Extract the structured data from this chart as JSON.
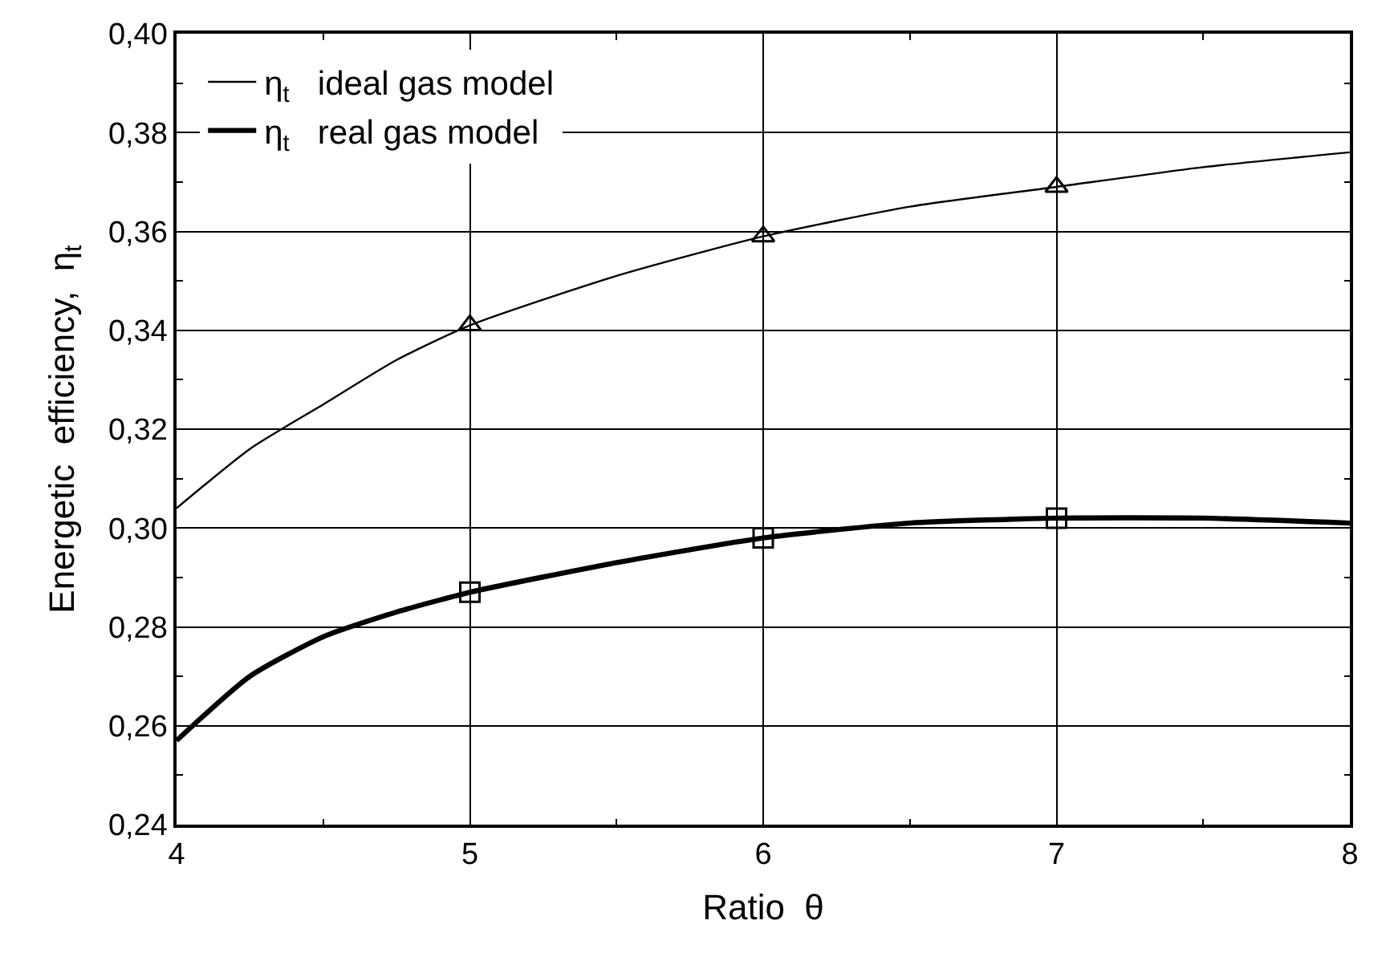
{
  "chart_data": {
    "type": "line",
    "xlabel": "Ratio  θ",
    "ylabel": "Energetic  efficiency,  η$_{t}$",
    "xlim": [
      4,
      8
    ],
    "ylim": [
      0.24,
      0.4
    ],
    "xticks": [
      4,
      {
        "value": 4.5,
        "label": null
      },
      5,
      {
        "value": 5.5,
        "label": null
      },
      6,
      {
        "value": 6.5,
        "label": null
      },
      7,
      {
        "value": 7.5,
        "label": null
      },
      8
    ],
    "yticks": [
      {
        "value": 0.24,
        "label": "0,24"
      },
      {
        "value": 0.25,
        "label": null
      },
      {
        "value": 0.26,
        "label": "0,26"
      },
      {
        "value": 0.27,
        "label": null
      },
      {
        "value": 0.28,
        "label": "0,28"
      },
      {
        "value": 0.29,
        "label": null
      },
      {
        "value": 0.3,
        "label": "0,30"
      },
      {
        "value": 0.31,
        "label": null
      },
      {
        "value": 0.32,
        "label": "0,32"
      },
      {
        "value": 0.33,
        "label": null
      },
      {
        "value": 0.34,
        "label": "0,34"
      },
      {
        "value": 0.35,
        "label": null
      },
      {
        "value": 0.36,
        "label": "0,36"
      },
      {
        "value": 0.37,
        "label": null
      },
      {
        "value": 0.38,
        "label": "0,38"
      },
      {
        "value": 0.39,
        "label": null
      },
      {
        "value": 0.4,
        "label": "0,40"
      }
    ],
    "x": [
      4,
      4.25,
      4.5,
      4.75,
      5,
      5.5,
      6,
      6.5,
      7,
      7.5,
      8
    ],
    "grid": true,
    "legend": "top left",
    "line_style": "solid",
    "series": [
      {
        "name": "η$_{t}$   ideal gas model",
        "color": "#000000",
        "marker": "none",
        "values": [
          0.304,
          0.316,
          0.325,
          0.334,
          0.341,
          0.351,
          0.359,
          0.365,
          0.369,
          0.373,
          0.376
        ]
      },
      {
        "name": "η$_{t}$   real gas model",
        "color": "#000000",
        "marker": "none",
        "values": [
          0.257,
          0.27,
          0.278,
          0.283,
          0.287,
          0.293,
          0.298,
          0.301,
          0.302,
          0.302,
          0.301
        ]
      },
      {
        "type": "scatter",
        "color": "#000000",
        "marker": "triangle",
        "x": [
          5,
          6,
          7
        ],
        "values": [
          0.341,
          0.359,
          0.369
        ]
      },
      {
        "type": "scatter",
        "color": "#000000",
        "marker": "square",
        "x": [
          5,
          6,
          7
        ],
        "values": [
          0.287,
          0.298,
          0.302
        ]
      }
    ]
  }
}
